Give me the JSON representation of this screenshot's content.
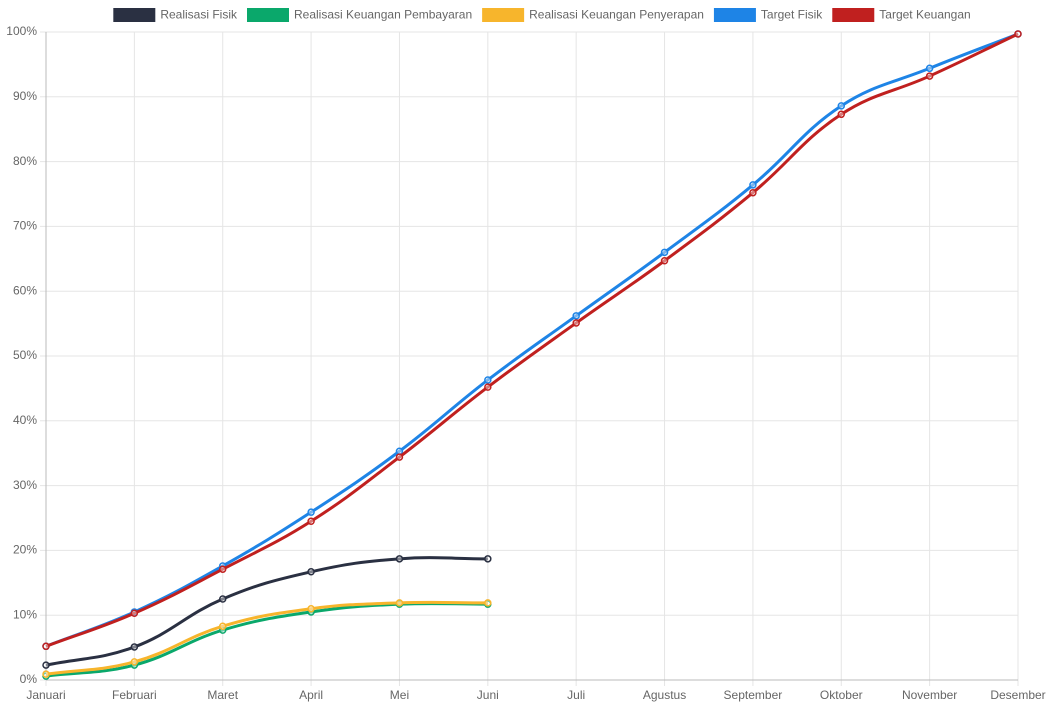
{
  "chart_data": {
    "type": "line",
    "categories": [
      "Januari",
      "Februari",
      "Maret",
      "April",
      "Mei",
      "Juni",
      "Juli",
      "Agustus",
      "September",
      "Oktober",
      "November",
      "Desember"
    ],
    "series": [
      {
        "name": "Realisasi Fisik",
        "color": "#2a3042",
        "values": [
          2.3,
          5.1,
          12.5,
          16.7,
          18.7,
          18.7,
          null,
          null,
          null,
          null,
          null,
          null
        ]
      },
      {
        "name": "Realisasi Keuangan Pembayaran",
        "color": "#0aa86b",
        "values": [
          0.6,
          2.3,
          7.7,
          10.5,
          11.7,
          11.7,
          null,
          null,
          null,
          null,
          null,
          null
        ]
      },
      {
        "name": "Realisasi Keuangan Penyerapan",
        "color": "#f7b52c",
        "values": [
          0.9,
          2.8,
          8.3,
          11.0,
          11.9,
          11.9,
          null,
          null,
          null,
          null,
          null,
          null
        ]
      },
      {
        "name": "Target Fisik",
        "color": "#1e84e6",
        "values": [
          5.2,
          10.5,
          17.6,
          25.9,
          35.3,
          46.3,
          56.2,
          66.0,
          76.4,
          88.6,
          94.4,
          99.7
        ]
      },
      {
        "name": "Target Keuangan",
        "color": "#c0201f",
        "values": [
          5.2,
          10.3,
          17.1,
          24.5,
          34.4,
          45.2,
          55.1,
          64.7,
          75.2,
          87.3,
          93.2,
          99.7
        ]
      }
    ],
    "ylim": [
      0,
      100
    ],
    "yticks": [
      {
        "value": 0,
        "label": "0%"
      },
      {
        "value": 10,
        "label": "10%"
      },
      {
        "value": 20,
        "label": "20%"
      },
      {
        "value": 30,
        "label": "30%"
      },
      {
        "value": 40,
        "label": "40%"
      },
      {
        "value": 50,
        "label": "50%"
      },
      {
        "value": 60,
        "label": "60%"
      },
      {
        "value": 70,
        "label": "70%"
      },
      {
        "value": 80,
        "label": "80%"
      },
      {
        "value": 90,
        "label": "90%"
      },
      {
        "value": 100,
        "label": "100%"
      }
    ],
    "grid": true
  }
}
